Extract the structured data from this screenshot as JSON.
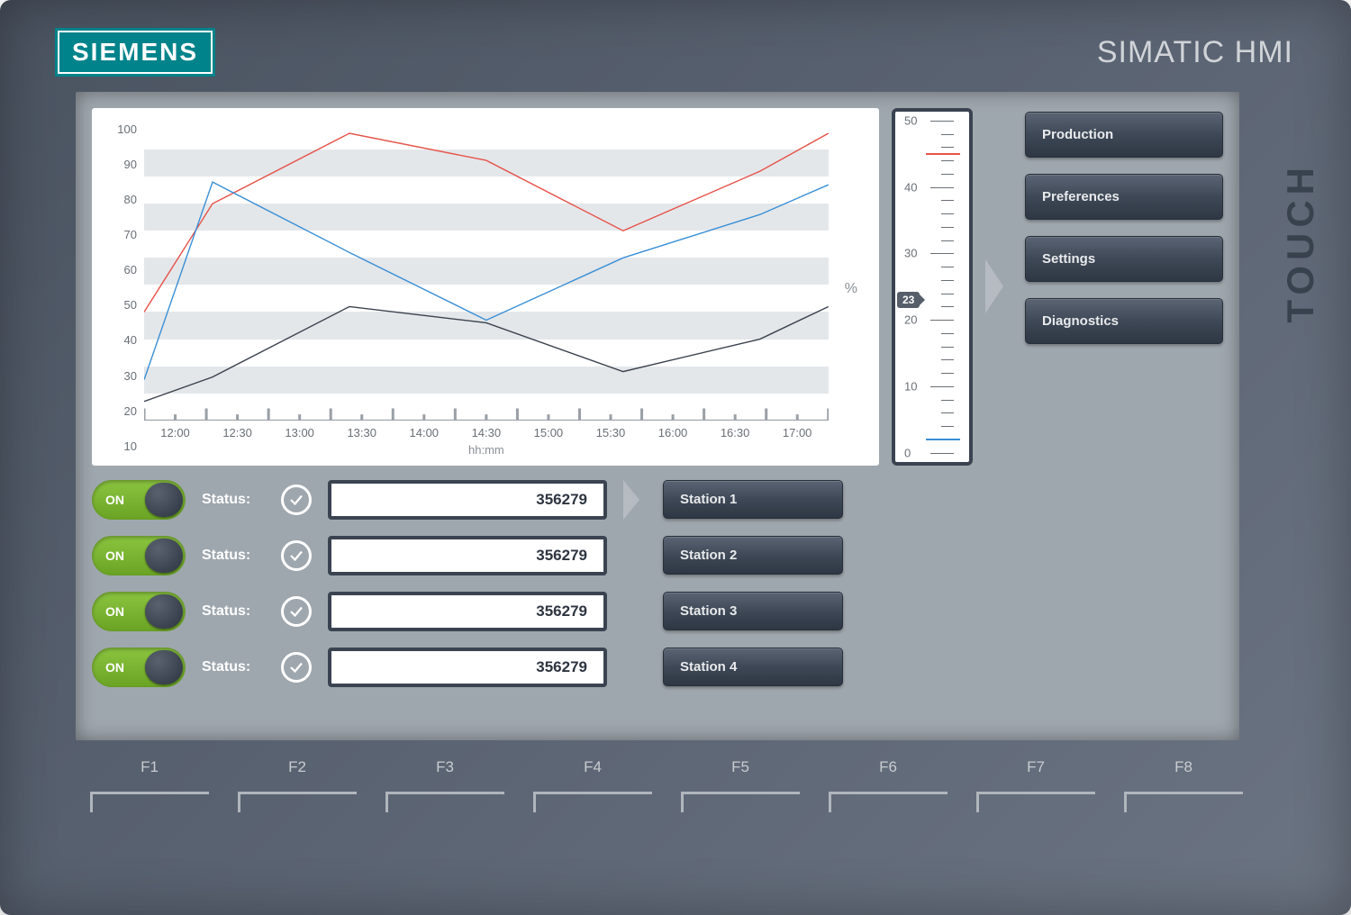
{
  "branding": {
    "logo_text": "SIEMENS",
    "product_label": "SIMATIC HMI",
    "side_label": "TOUCH",
    "logo_bg": "#00838a",
    "logo_fg": "#ffffff"
  },
  "chart": {
    "type": "line",
    "x_labels": [
      "12:00",
      "12:30",
      "13:00",
      "13:30",
      "14:00",
      "14:30",
      "15:00",
      "15:30",
      "16:00",
      "16:30",
      "17:00"
    ],
    "x_axis_title": "hh:mm",
    "y_ticks": [
      10,
      20,
      30,
      40,
      50,
      60,
      70,
      80,
      90,
      100
    ],
    "y_unit": "%",
    "ylim": [
      0,
      110
    ],
    "grid_stripe_color": "#e4e7ea",
    "background": "#ffffff",
    "tick_color": "#6a6f75",
    "series": [
      {
        "name": "red",
        "color": "#e6534a",
        "width": 2,
        "values": [
          40,
          80,
          106,
          96,
          70,
          92,
          106
        ]
      },
      {
        "name": "blue",
        "color": "#3a8fd6",
        "width": 2,
        "values": [
          15,
          88,
          62,
          37,
          60,
          76,
          87
        ]
      },
      {
        "name": "black",
        "color": "#3a424d",
        "width": 2,
        "values": [
          7,
          16,
          42,
          36,
          18,
          30,
          42
        ]
      }
    ],
    "series_x_indices": [
      0,
      1,
      3,
      5,
      7,
      9,
      10
    ]
  },
  "gauge": {
    "min": 0,
    "max": 50,
    "major_step": 10,
    "minor_step": 2,
    "value": 23,
    "red_line": 45,
    "blue_line": 2,
    "frame_color": "#3a4350",
    "marker_bg": "#565e69",
    "red_color": "#e6534a",
    "blue_color": "#3a8fd6"
  },
  "menu": {
    "items": [
      {
        "label": "Production"
      },
      {
        "label": "Preferences"
      },
      {
        "label": "Settings"
      },
      {
        "label": "Diagnostics"
      }
    ]
  },
  "status_rows": [
    {
      "toggle": "ON",
      "status_label": "Status:",
      "value": "356279",
      "station": "Station 1"
    },
    {
      "toggle": "ON",
      "status_label": "Status:",
      "value": "356279",
      "station": "Station 2"
    },
    {
      "toggle": "ON",
      "status_label": "Status:",
      "value": "356279",
      "station": "Station 3"
    },
    {
      "toggle": "ON",
      "status_label": "Status:",
      "value": "356279",
      "station": "Station 4"
    }
  ],
  "toggle_style": {
    "on_bg": "#7ab82e",
    "label_color": "#ffffff"
  },
  "button_style": {
    "bg_top": "#5a6474",
    "bg_bottom": "#2e3744",
    "fg": "#e8eaec"
  },
  "fkeys": [
    "F1",
    "F2",
    "F3",
    "F4",
    "F5",
    "F6",
    "F7",
    "F8"
  ],
  "device": {
    "bezel_color": "#5a6372",
    "screen_bg": "#9fa7ae"
  }
}
